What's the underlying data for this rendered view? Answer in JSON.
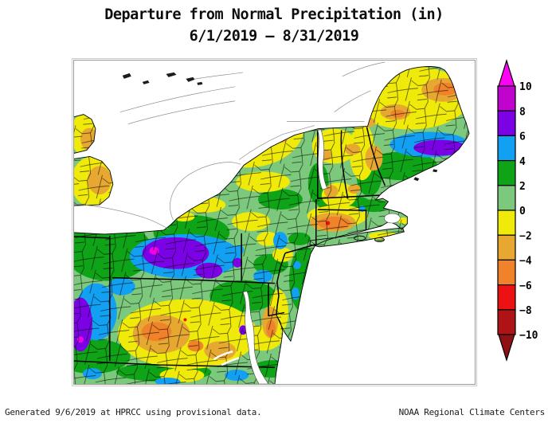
{
  "title": {
    "line1": "Departure from Normal Precipitation (in)",
    "line2": "6/1/2019 – 8/31/2019"
  },
  "footer": {
    "left": "Generated 9/6/2019 at HPRCC using provisional data.",
    "right": "NOAA Regional Climate Centers"
  },
  "colorbar": {
    "tick_labels": [
      "10",
      "8",
      "6",
      "4",
      "2",
      "0",
      "−2",
      "−4",
      "−6",
      "−8",
      "−10"
    ],
    "segment_colors_top_to_bottom": [
      "#C004CE",
      "#7C02E6",
      "#12A0F3",
      "#0FA317",
      "#7CC87C",
      "#F0EA0A",
      "#E7A832",
      "#F0832A",
      "#EC1214",
      "#AE1316"
    ],
    "arrow_top_color": "#FD02F5",
    "arrow_bottom_color": "#8E1113",
    "outline_color": "#000000"
  },
  "map_palette": {
    "above_10": "#FD02F5",
    "p8_10": "#C004CE",
    "p6_8": "#7C02E6",
    "p4_6": "#12A0F3",
    "p2_4": "#0FA317",
    "p0_2": "#7CC87C",
    "m2_0": "#F0EA0A",
    "m4_2": "#E7A832",
    "m6_4": "#F0832A",
    "m8_6": "#EC1214",
    "m10_8": "#AE1316",
    "water_land_outside": "#FFFFFF",
    "county_border": "#000000"
  }
}
